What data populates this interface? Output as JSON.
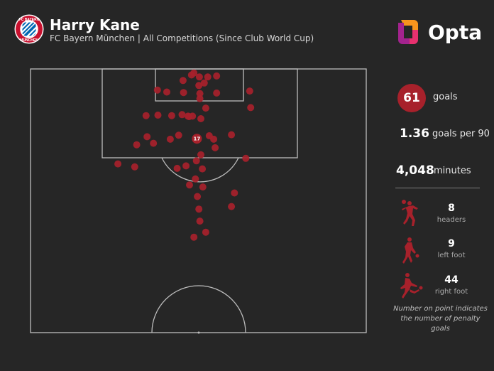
{
  "header": {
    "player_name": "Harry Kane",
    "subtitle": "FC Bayern München | All Competitions (Since Club World Cup)",
    "brand": "Opta",
    "crest_text": "FC BAYERN MÜNCHEN"
  },
  "colors": {
    "background": "#262626",
    "accent": "#a7212b",
    "pitch_lines": "#bdbdbd"
  },
  "stats": {
    "goals_value": "61",
    "goals_label": "goals",
    "per90_value": "1.36",
    "per90_label": "goals per 90",
    "minutes_value": "4,048",
    "minutes_label": "minutes"
  },
  "body_parts": [
    {
      "icon": "header-player-icon",
      "value": "8",
      "label": "headers"
    },
    {
      "icon": "left-foot-player-icon",
      "value": "9",
      "label": "left foot"
    },
    {
      "icon": "right-foot-player-icon",
      "value": "44",
      "label": "right foot"
    }
  ],
  "footnote": "Number on point indicates the number of penalty goals",
  "chart_data": {
    "type": "scatter",
    "description_units": "pitch coordinates in metres: x = across the pitch from left touchline (0-68), y = distance from goal line (0-52.5, half pitch)",
    "xlim": [
      0,
      68
    ],
    "ylim": [
      0,
      52.5
    ],
    "points": [
      {
        "x": 33.1,
        "y": 0.8
      },
      {
        "x": 32.6,
        "y": 1.2
      },
      {
        "x": 34.2,
        "y": 1.6
      },
      {
        "x": 35.9,
        "y": 1.6
      },
      {
        "x": 37.7,
        "y": 1.4
      },
      {
        "x": 30.9,
        "y": 2.3
      },
      {
        "x": 35.2,
        "y": 2.8
      },
      {
        "x": 34.1,
        "y": 3.3
      },
      {
        "x": 25.7,
        "y": 4.2
      },
      {
        "x": 27.6,
        "y": 4.6
      },
      {
        "x": 31.0,
        "y": 4.7
      },
      {
        "x": 34.3,
        "y": 4.9
      },
      {
        "x": 37.7,
        "y": 4.8
      },
      {
        "x": 44.4,
        "y": 4.4
      },
      {
        "x": 34.3,
        "y": 5.9
      },
      {
        "x": 35.5,
        "y": 7.8
      },
      {
        "x": 44.6,
        "y": 7.7
      },
      {
        "x": 25.8,
        "y": 9.2
      },
      {
        "x": 28.6,
        "y": 9.3
      },
      {
        "x": 30.7,
        "y": 9.1
      },
      {
        "x": 31.9,
        "y": 9.4
      },
      {
        "x": 32.8,
        "y": 9.4
      },
      {
        "x": 32.1,
        "y": 9.5
      },
      {
        "x": 34.5,
        "y": 9.9
      },
      {
        "x": 23.4,
        "y": 9.3
      },
      {
        "x": 36.2,
        "y": 13.3
      },
      {
        "x": 40.7,
        "y": 13.1
      },
      {
        "x": 23.6,
        "y": 13.5
      },
      {
        "x": 30.0,
        "y": 13.2
      },
      {
        "x": 28.3,
        "y": 14.0
      },
      {
        "x": 33.7,
        "y": 13.9,
        "label": "17"
      },
      {
        "x": 37.1,
        "y": 14.0
      },
      {
        "x": 24.9,
        "y": 14.8
      },
      {
        "x": 21.5,
        "y": 15.1
      },
      {
        "x": 37.4,
        "y": 15.7
      },
      {
        "x": 34.5,
        "y": 17.1
      },
      {
        "x": 43.6,
        "y": 17.8
      },
      {
        "x": 17.7,
        "y": 18.9
      },
      {
        "x": 21.1,
        "y": 19.5
      },
      {
        "x": 33.6,
        "y": 18.3
      },
      {
        "x": 31.5,
        "y": 19.3
      },
      {
        "x": 29.7,
        "y": 19.8
      },
      {
        "x": 34.8,
        "y": 19.9
      },
      {
        "x": 33.4,
        "y": 21.9
      },
      {
        "x": 32.2,
        "y": 23.1
      },
      {
        "x": 34.9,
        "y": 23.5
      },
      {
        "x": 41.3,
        "y": 24.7
      },
      {
        "x": 33.8,
        "y": 25.4
      },
      {
        "x": 34.1,
        "y": 27.9
      },
      {
        "x": 40.7,
        "y": 27.4
      },
      {
        "x": 34.3,
        "y": 30.3
      },
      {
        "x": 35.5,
        "y": 32.5
      },
      {
        "x": 33.1,
        "y": 33.5
      }
    ]
  }
}
